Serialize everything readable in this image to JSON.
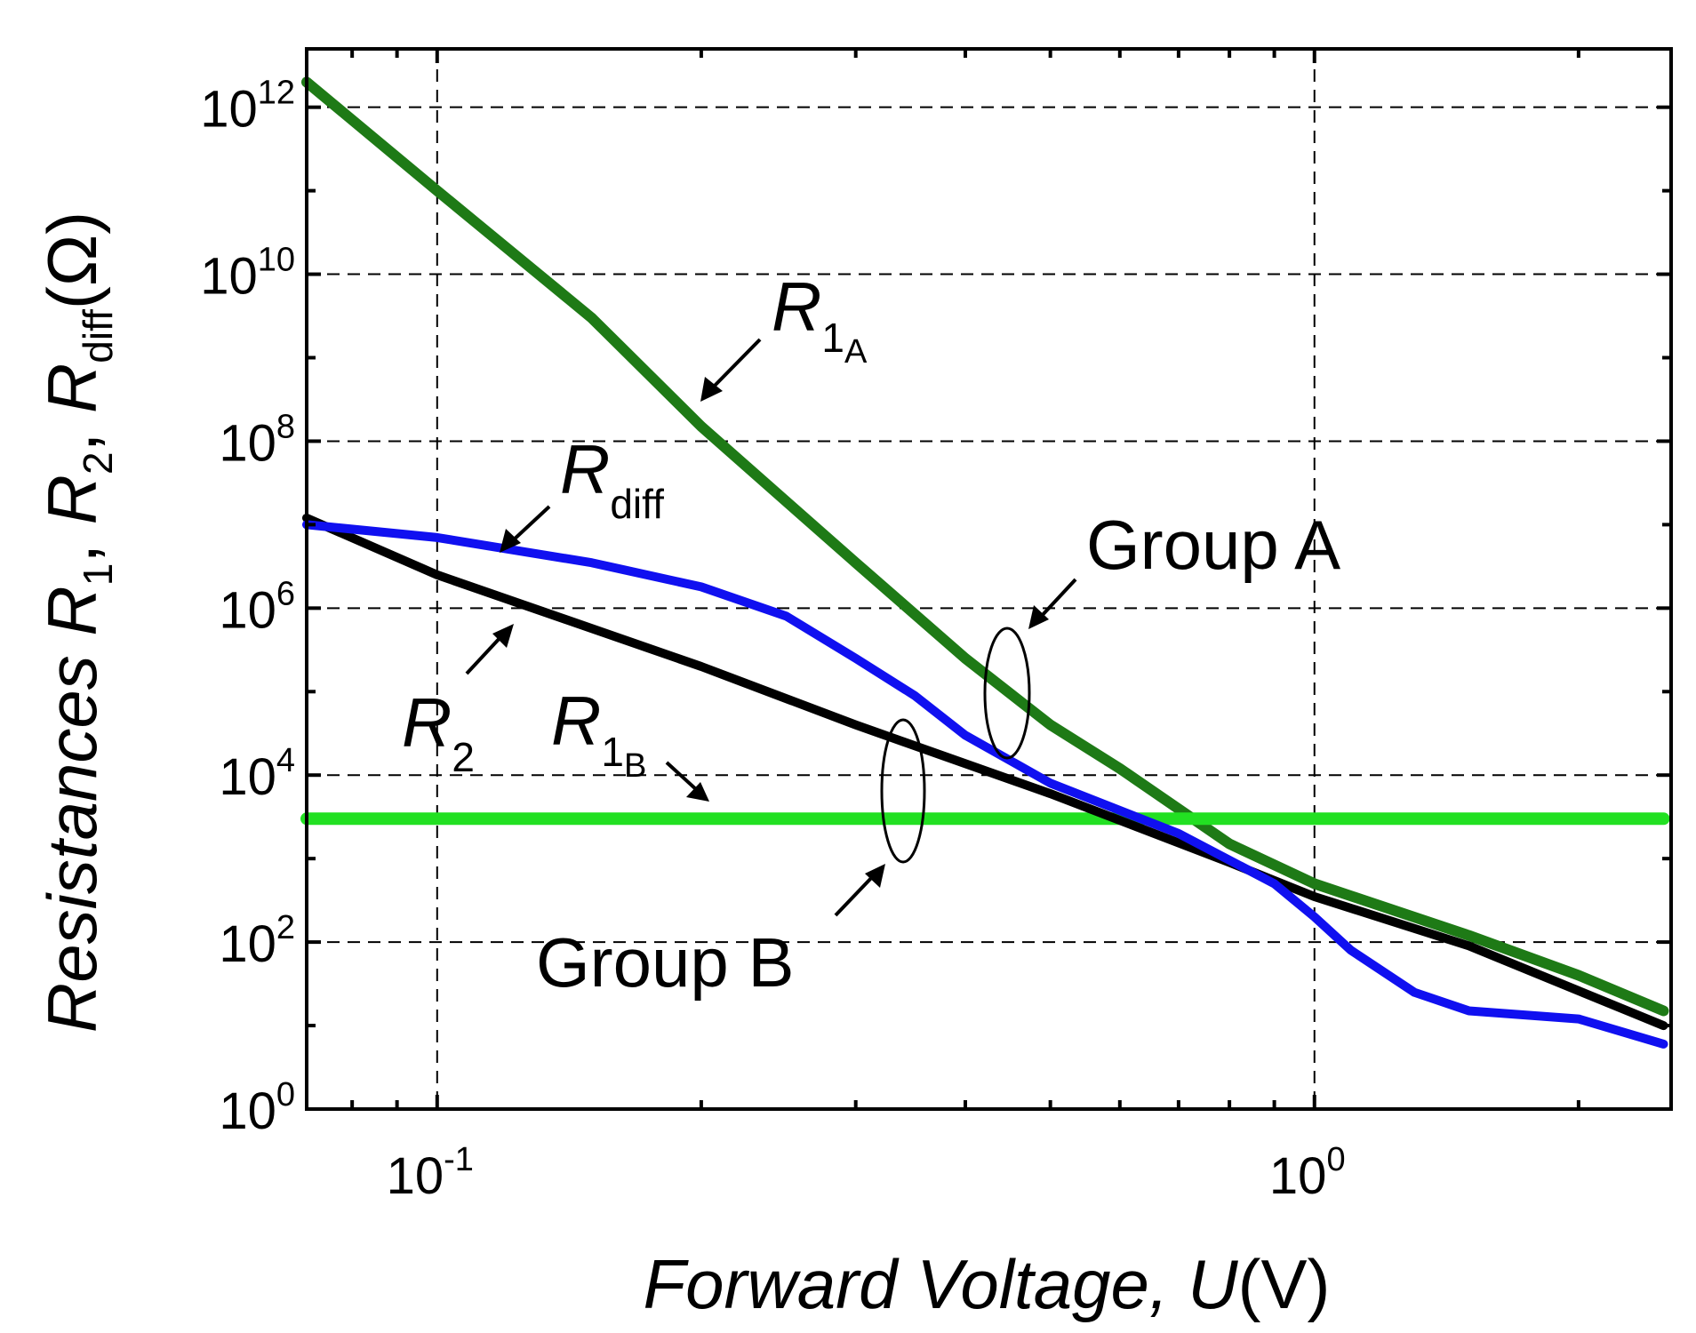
{
  "chart_data": {
    "type": "line",
    "xscale": "log",
    "yscale": "log",
    "xlim": [
      0.071,
      2.55
    ],
    "ylim": [
      1,
      5000000000000.0
    ],
    "xlabel": {
      "italic": "Forward Voltage, ",
      "italic_var": "U",
      "unit": "(V)"
    },
    "ylabel": {
      "prefix": "Resistances ",
      "r": "R",
      "sub1": "1",
      "sub2": "2",
      "subdiff": "diff",
      "sep": ", ",
      "unit": "(Ω)"
    },
    "x_ticks": [
      {
        "value": 0.1,
        "base": "10",
        "exp": "-1"
      },
      {
        "value": 1.0,
        "base": "10",
        "exp": "0"
      }
    ],
    "y_ticks": [
      {
        "value": 1,
        "base": "10",
        "exp": "0"
      },
      {
        "value": 100,
        "base": "10",
        "exp": "2"
      },
      {
        "value": 10000,
        "base": "10",
        "exp": "4"
      },
      {
        "value": 1000000,
        "base": "10",
        "exp": "6"
      },
      {
        "value": 100000000,
        "base": "10",
        "exp": "8"
      },
      {
        "value": 10000000000,
        "base": "10",
        "exp": "10"
      },
      {
        "value": 1000000000000,
        "base": "10",
        "exp": "12"
      }
    ],
    "series": [
      {
        "name": "R1A",
        "color": "#1e7a16",
        "x": [
          0.071,
          0.1,
          0.15,
          0.2,
          0.3,
          0.4,
          0.5,
          0.6,
          0.8,
          1.0,
          1.5,
          2.0,
          2.5
        ],
        "y": [
          2000000000000.0,
          100000000000.0,
          3000000000.0,
          150000000.0,
          3500000.0,
          250000.0,
          40000.0,
          12000.0,
          1500.0,
          500,
          120,
          40,
          15
        ]
      },
      {
        "name": "R1B",
        "color": "#22e022",
        "x": [
          0.071,
          2.5
        ],
        "y": [
          3000,
          3000
        ]
      },
      {
        "name": "R2",
        "color": "#000000",
        "x": [
          0.071,
          0.1,
          0.2,
          0.3,
          0.5,
          0.8,
          1.0,
          1.5,
          2.5
        ],
        "y": [
          12000000.0,
          2500000.0,
          200000.0,
          40000.0,
          6000,
          900,
          350,
          90,
          10
        ]
      },
      {
        "name": "Rdiff",
        "color": "#1010f0",
        "x": [
          0.071,
          0.1,
          0.15,
          0.2,
          0.25,
          0.3,
          0.35,
          0.4,
          0.5,
          0.7,
          0.9,
          1.0,
          1.1,
          1.3,
          1.5,
          2.0,
          2.5
        ],
        "y": [
          10000000.0,
          7000000.0,
          3500000.0,
          1800000.0,
          800000.0,
          250000.0,
          90000.0,
          30000.0,
          8000,
          2000,
          500,
          200,
          80,
          25,
          15,
          12,
          6
        ]
      }
    ],
    "annotations": [
      {
        "label": "R",
        "sub": "1",
        "subsub": "A",
        "x": 0.285,
        "y": 3000000000.0
      },
      {
        "label": "R",
        "sub": "diff",
        "x": 0.155,
        "y": 90000000.0
      },
      {
        "label": "Group A",
        "x": 0.47,
        "y": 4000000.0
      },
      {
        "label": "R",
        "sub": "2",
        "x": 0.085,
        "y": 30000.0
      },
      {
        "label": "R",
        "sub": "1",
        "subsub": "B",
        "x": 0.136,
        "y": 30000.0
      },
      {
        "label": "Group B",
        "x": 0.155,
        "y": 50
      }
    ]
  }
}
